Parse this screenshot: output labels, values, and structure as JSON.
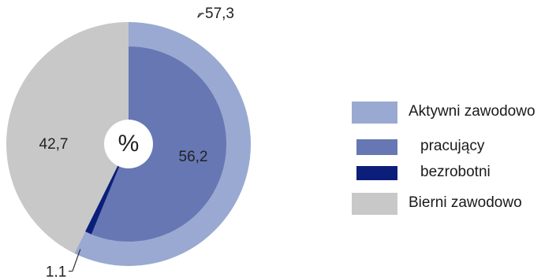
{
  "chart_data": {
    "type": "pie",
    "title": "",
    "center_label": "%",
    "outer_ring": [
      {
        "name": "Aktywni zawodowo",
        "value": 57.3,
        "label": "57,3",
        "color": "#9aa9d1"
      },
      {
        "name": "Bierni zawodowo",
        "value": 42.7,
        "label": "42,7",
        "color": "#c8c8c8"
      }
    ],
    "inner_ring": [
      {
        "name": "pracujący",
        "value": 56.2,
        "label": "56,2",
        "color": "#6677b3"
      },
      {
        "name": "bezrobotni",
        "value": 1.1,
        "label": "1,1",
        "color": "#0b1f7a"
      }
    ],
    "legend": {
      "placement": "right",
      "items": [
        {
          "label": "Aktywni zawodowo",
          "color": "#9aa9d1",
          "indent": false
        },
        {
          "label": "pracujący",
          "color": "#6677b3",
          "indent": true
        },
        {
          "label": "bezrobotni",
          "color": "#0b1f7a",
          "indent": true
        },
        {
          "label": "Bierni zawodowo",
          "color": "#c8c8c8",
          "indent": false
        }
      ]
    }
  }
}
